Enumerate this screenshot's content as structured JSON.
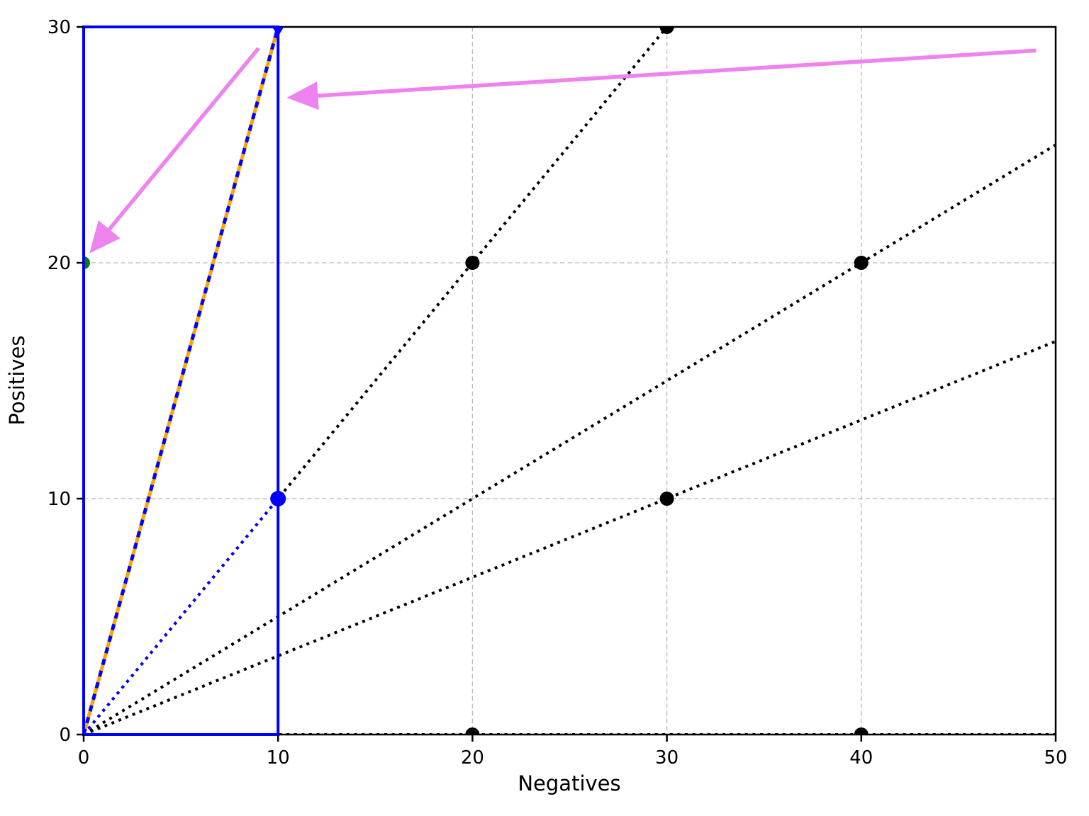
{
  "chart_data": {
    "type": "line",
    "title": "",
    "xlabel": "Negatives",
    "ylabel": "Positives",
    "xlim": [
      0,
      50
    ],
    "ylim": [
      0,
      30
    ],
    "xticks": [
      0,
      10,
      20,
      30,
      40,
      50
    ],
    "yticks": [
      0,
      10,
      20,
      30
    ],
    "grid": {
      "show": true,
      "color": "#bababa",
      "style": "dashed",
      "width": 1.3
    },
    "axis_color": "#000000",
    "series": [
      {
        "name": "iso-ratio-line-1to1",
        "points": [
          [
            0,
            0
          ],
          [
            30,
            30
          ]
        ],
        "color": "#000000",
        "style": "dotted",
        "width": 4
      },
      {
        "name": "iso-ratio-line-2to1",
        "points": [
          [
            0,
            0
          ],
          [
            50,
            25
          ]
        ],
        "color": "#000000",
        "style": "dotted",
        "width": 4
      },
      {
        "name": "iso-ratio-line-3to1",
        "points": [
          [
            0,
            0
          ],
          [
            50,
            16.67
          ]
        ],
        "color": "#000000",
        "style": "dotted",
        "width": 4
      },
      {
        "name": "iso-ratio-line-horizontal",
        "points": [
          [
            0,
            0
          ],
          [
            50,
            0
          ]
        ],
        "color": "#000000",
        "style": "dotted",
        "width": 4
      },
      {
        "name": "blue-diagonal-segment",
        "points": [
          [
            0,
            0
          ],
          [
            10,
            10
          ]
        ],
        "color": "#0000ff",
        "style": "dotted",
        "width": 4
      },
      {
        "name": "steep-line-orange",
        "points": [
          [
            0,
            0
          ],
          [
            10,
            30
          ]
        ],
        "color": "#ffa500",
        "style": "solid",
        "width": 5
      },
      {
        "name": "steep-line-blue-dashes",
        "points": [
          [
            0,
            0
          ],
          [
            10,
            30
          ]
        ],
        "color": "#0000ff",
        "style": "dashed",
        "width": 5
      }
    ],
    "markers": [
      {
        "x": 20,
        "y": 20,
        "shape": "circle",
        "size": 10,
        "color": "#000000"
      },
      {
        "x": 30,
        "y": 30,
        "shape": "circle",
        "size": 10,
        "color": "#000000"
      },
      {
        "x": 40,
        "y": 20,
        "shape": "circle",
        "size": 10,
        "color": "#000000"
      },
      {
        "x": 30,
        "y": 10,
        "shape": "circle",
        "size": 10,
        "color": "#000000"
      },
      {
        "x": 20,
        "y": 0,
        "shape": "circle",
        "size": 10,
        "color": "#000000"
      },
      {
        "x": 40,
        "y": 0,
        "shape": "circle",
        "size": 10,
        "color": "#000000"
      },
      {
        "x": 10,
        "y": 10,
        "shape": "circle",
        "size": 11,
        "color": "#0000ff"
      },
      {
        "x": 10,
        "y": 30,
        "shape": "triangle-down",
        "size": 15,
        "color": "#0000ff"
      },
      {
        "x": 0,
        "y": 20,
        "shape": "circle",
        "size": 9,
        "color": "#008000"
      }
    ],
    "highlight_box": {
      "x0": 0,
      "y0": 0,
      "x1": 10,
      "y1": 30,
      "color": "#0000ff",
      "width": 4
    },
    "arrows": [
      {
        "name": "arrow-to-green-point",
        "from": [
          9.0,
          29.1
        ],
        "to": [
          0.3,
          20.4
        ],
        "color": "#ee82ee",
        "width": 5.5
      },
      {
        "name": "arrow-to-blue-boundary",
        "from": [
          49.0,
          29.0
        ],
        "to": [
          10.45,
          27.0
        ],
        "color": "#ee82ee",
        "width": 5.5
      }
    ],
    "legend": null
  }
}
